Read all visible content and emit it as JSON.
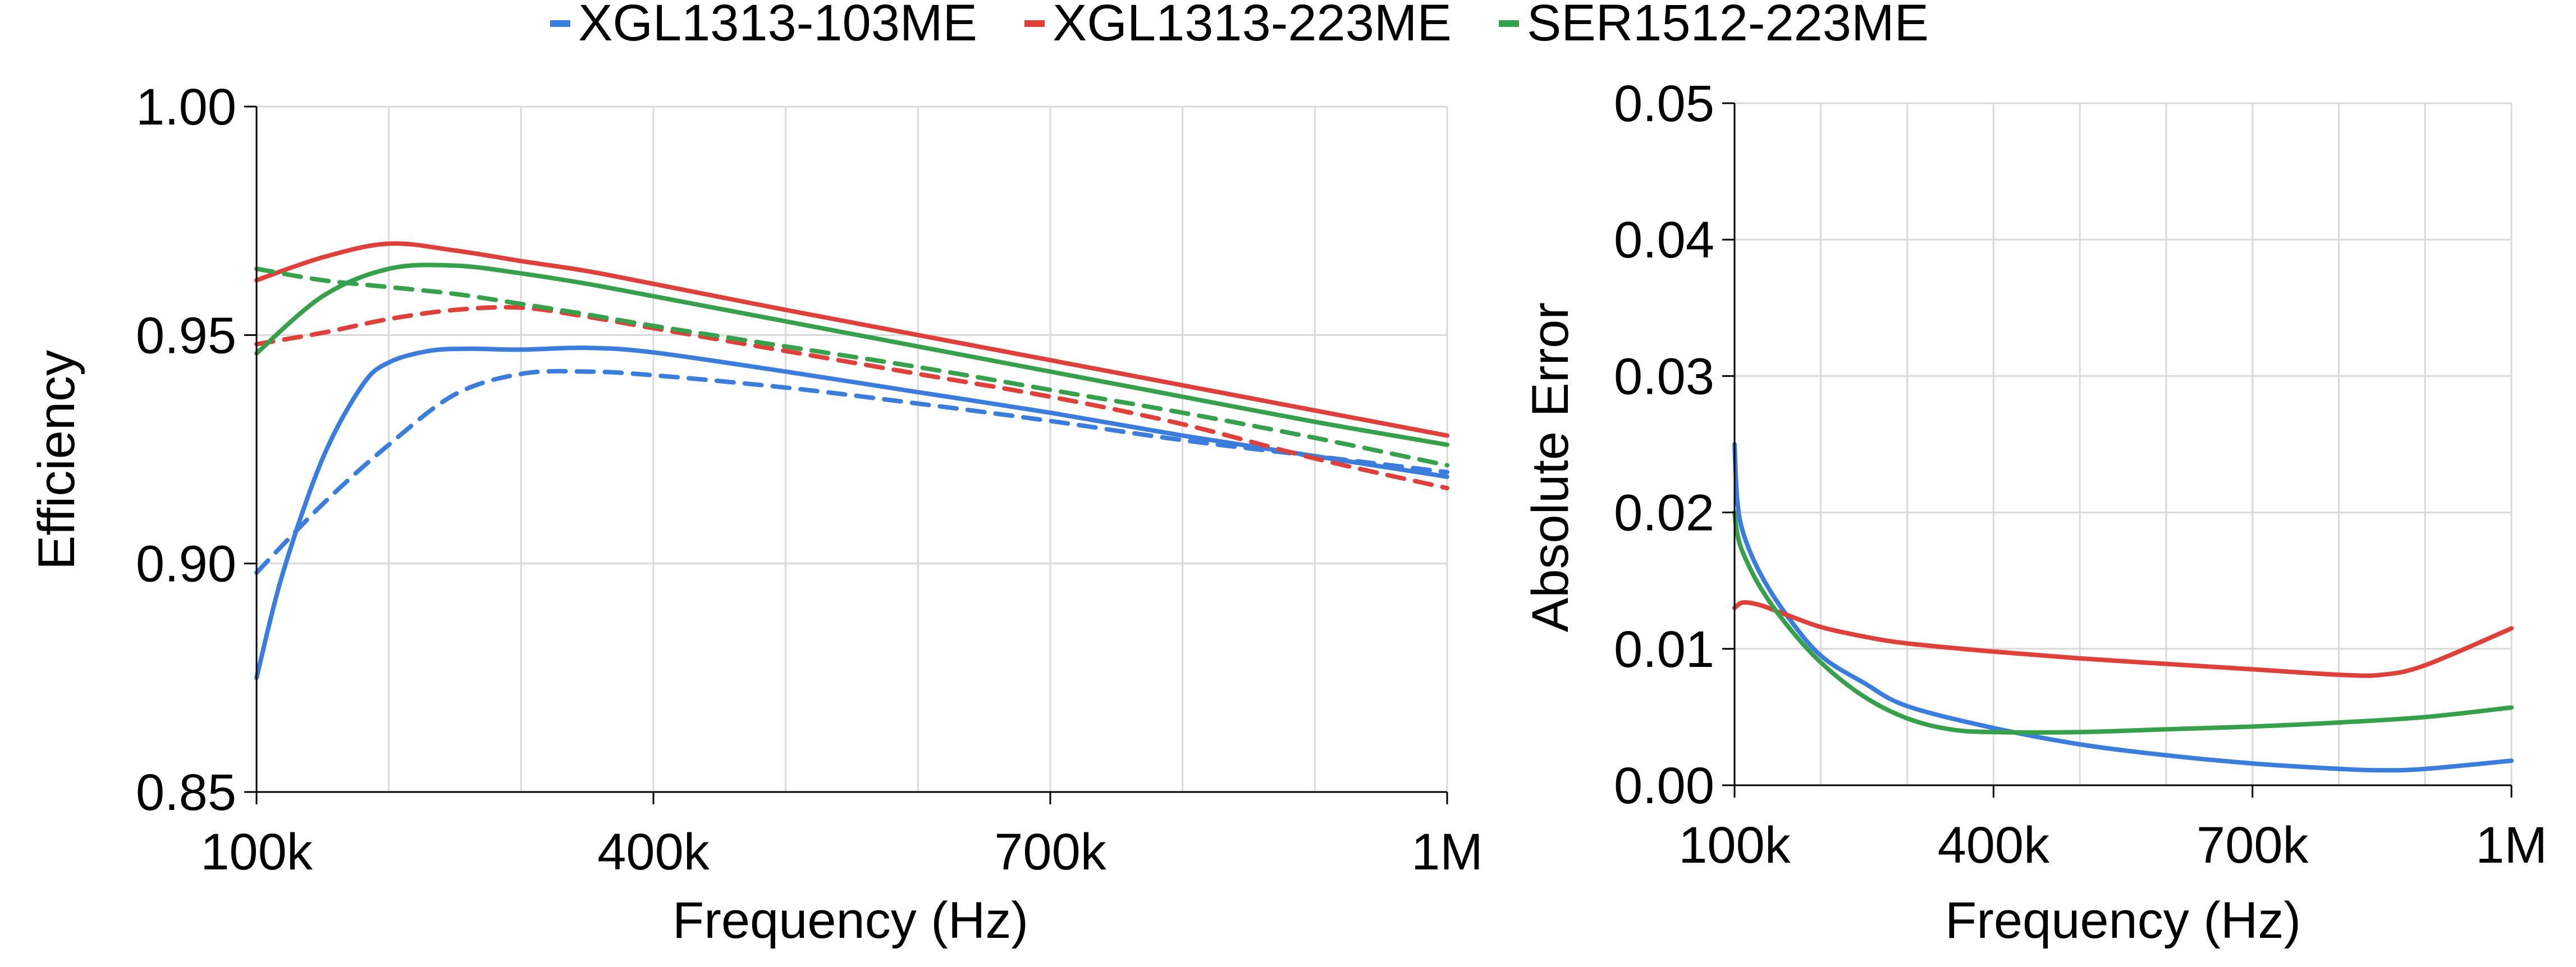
{
  "legend": [
    {
      "name": "XGL1313-103ME",
      "color": "#3b7ddd"
    },
    {
      "name": "XGL1313-223ME",
      "color": "#e0403a"
    },
    {
      "name": "SER1512-223ME",
      "color": "#36a14a"
    }
  ],
  "chart_data": [
    {
      "type": "line",
      "title": "",
      "xlabel": "Frequency (Hz)",
      "ylabel": "Efficiency",
      "xlim": [
        100000,
        1000000
      ],
      "ylim": [
        0.85,
        1.0
      ],
      "x_ticks": [
        100000,
        400000,
        700000,
        1000000
      ],
      "x_tick_labels": [
        "100k",
        "400k",
        "700k",
        "1M"
      ],
      "y_ticks": [
        0.85,
        0.9,
        0.95,
        1.0
      ],
      "y_tick_labels": [
        "0.85",
        "0.90",
        "0.95",
        "1.00"
      ],
      "grid": true,
      "series": [
        {
          "name": "XGL1313-103ME",
          "color": "#3b7ddd",
          "style": "solid",
          "x": [
            100000,
            120000,
            150000,
            180000,
            200000,
            230000,
            260000,
            300000,
            350000,
            400000,
            500000,
            600000,
            700000,
            800000,
            900000,
            1000000
          ],
          "y": [
            0.875,
            0.898,
            0.923,
            0.939,
            0.944,
            0.9465,
            0.947,
            0.9468,
            0.9472,
            0.9462,
            0.942,
            0.9375,
            0.933,
            0.928,
            0.9235,
            0.919
          ]
        },
        {
          "name": "XGL1313-103ME",
          "color": "#3b7ddd",
          "style": "dashed",
          "x": [
            100000,
            150000,
            200000,
            250000,
            300000,
            350000,
            400000,
            500000,
            600000,
            700000,
            800000,
            900000,
            1000000
          ],
          "y": [
            0.898,
            0.913,
            0.926,
            0.937,
            0.9415,
            0.942,
            0.9412,
            0.9385,
            0.935,
            0.9312,
            0.927,
            0.9235,
            0.92
          ]
        },
        {
          "name": "XGL1313-223ME",
          "color": "#e0403a",
          "style": "solid",
          "x": [
            100000,
            150000,
            200000,
            250000,
            300000,
            350000,
            400000,
            500000,
            600000,
            700000,
            800000,
            900000,
            1000000
          ],
          "y": [
            0.962,
            0.967,
            0.97,
            0.9685,
            0.9662,
            0.964,
            0.9612,
            0.9555,
            0.95,
            0.9445,
            0.939,
            0.9335,
            0.928
          ]
        },
        {
          "name": "XGL1313-223ME",
          "color": "#e0403a",
          "style": "dashed",
          "x": [
            100000,
            150000,
            200000,
            250000,
            300000,
            350000,
            400000,
            500000,
            600000,
            700000,
            800000,
            900000,
            1000000
          ],
          "y": [
            0.948,
            0.9505,
            0.9535,
            0.9555,
            0.956,
            0.954,
            0.9515,
            0.9465,
            0.9415,
            0.9365,
            0.9305,
            0.923,
            0.9165
          ]
        },
        {
          "name": "SER1512-223ME",
          "color": "#36a14a",
          "style": "solid",
          "x": [
            100000,
            150000,
            200000,
            250000,
            300000,
            350000,
            400000,
            500000,
            600000,
            700000,
            800000,
            900000,
            1000000
          ],
          "y": [
            0.946,
            0.9585,
            0.9645,
            0.9652,
            0.9635,
            0.9612,
            0.9585,
            0.953,
            0.9475,
            0.942,
            0.9365,
            0.931,
            0.926
          ]
        },
        {
          "name": "SER1512-223ME",
          "color": "#36a14a",
          "style": "dashed",
          "x": [
            100000,
            150000,
            200000,
            250000,
            300000,
            350000,
            400000,
            500000,
            600000,
            700000,
            800000,
            900000,
            1000000
          ],
          "y": [
            0.9645,
            0.962,
            0.9605,
            0.959,
            0.9568,
            0.9545,
            0.952,
            0.9475,
            0.943,
            0.938,
            0.933,
            0.9275,
            0.9215
          ]
        }
      ]
    },
    {
      "type": "line",
      "title": "",
      "xlabel": "Frequency (Hz)",
      "ylabel": "Absolute Error",
      "xlim": [
        100000,
        1000000
      ],
      "ylim": [
        0.0,
        0.05
      ],
      "x_ticks": [
        100000,
        400000,
        700000,
        1000000
      ],
      "x_tick_labels": [
        "100k",
        "400k",
        "700k",
        "1M"
      ],
      "y_ticks": [
        0.0,
        0.01,
        0.02,
        0.03,
        0.04,
        0.05
      ],
      "y_tick_labels": [
        "0.00",
        "0.01",
        "0.02",
        "0.03",
        "0.04",
        "0.05"
      ],
      "grid": true,
      "series": [
        {
          "name": "XGL1313-103ME",
          "color": "#3b7ddd",
          "style": "solid",
          "x": [
            100000,
            103000,
            110000,
            130000,
            160000,
            200000,
            250000,
            300000,
            400000,
            500000,
            600000,
            700000,
            800000,
            850000,
            900000,
            1000000
          ],
          "y": [
            0.025,
            0.021,
            0.0185,
            0.0155,
            0.0125,
            0.0095,
            0.0075,
            0.0058,
            0.0042,
            0.003,
            0.0022,
            0.0016,
            0.0012,
            0.0011,
            0.0012,
            0.0018
          ]
        },
        {
          "name": "XGL1313-223ME",
          "color": "#e0403a",
          "style": "solid",
          "x": [
            100000,
            110000,
            130000,
            160000,
            200000,
            250000,
            300000,
            400000,
            500000,
            600000,
            700000,
            800000,
            850000,
            900000,
            1000000
          ],
          "y": [
            0.013,
            0.0134,
            0.0132,
            0.0125,
            0.0116,
            0.0109,
            0.0104,
            0.0098,
            0.0093,
            0.0089,
            0.0085,
            0.0081,
            0.0081,
            0.0088,
            0.0115
          ]
        },
        {
          "name": "SER1512-223ME",
          "color": "#36a14a",
          "style": "solid",
          "x": [
            100000,
            103000,
            110000,
            130000,
            160000,
            200000,
            250000,
            300000,
            350000,
            400000,
            500000,
            600000,
            700000,
            800000,
            900000,
            1000000
          ],
          "y": [
            0.02,
            0.0185,
            0.017,
            0.0145,
            0.0118,
            0.009,
            0.0065,
            0.0049,
            0.0041,
            0.0039,
            0.0039,
            0.0041,
            0.0043,
            0.0046,
            0.005,
            0.0057
          ]
        }
      ]
    }
  ]
}
